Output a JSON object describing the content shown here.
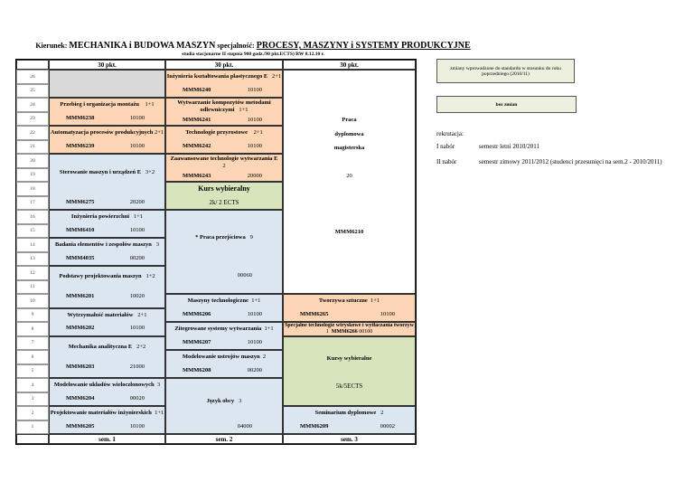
{
  "header": {
    "kierunek_label": "Kierunek:",
    "kierunek": "MECHANIKA i BUDOWA MASZYN",
    "spec_label": "specjalność:",
    "spec": "PROCESY, MASZYNY i SYSTEMY PRODUKCYJNE",
    "subtitle": "studia stacjonarne II stopnia 900 godz./90 pkt.ECTS) RW 8.12.10 r."
  },
  "columns": [
    "30 pkt.",
    "30 pkt.",
    "30 pkt."
  ],
  "footer": [
    "sem. 1",
    "sem. 2",
    "sem. 3"
  ],
  "rows": [
    "26",
    "25",
    "24",
    "23",
    "22",
    "21",
    "20",
    "19",
    "18",
    "17",
    "16",
    "15",
    "14",
    "13",
    "12",
    "11",
    "10",
    "9",
    "8",
    "7",
    "6",
    "5",
    "4",
    "3",
    "2",
    "1"
  ],
  "sem1": [
    {
      "title": "Przebieg i organizacja montażu",
      "hours": "1+1",
      "code": "MMM6238",
      "val": "10100"
    },
    {
      "title": "Automatyzacja procesów produkcyjnych",
      "hours": "2+1",
      "code": "MMM6239",
      "val": "10100"
    },
    {
      "title": "Sterowanie maszyn i urządzeń   E",
      "hours": "3+2",
      "code": "MMM6275",
      "val": "20200"
    },
    {
      "title": "Inżynieria powierzchni",
      "hours": "1+1",
      "code": "MMM6410",
      "val": "10100"
    },
    {
      "title": "Badania elementów i zespołów maszyn",
      "hours": "3",
      "code": "MMM4035",
      "val": "00200"
    },
    {
      "title": "Podstawy projektowania maszyn",
      "hours": "1+2",
      "code": "MMM6201",
      "val": "10020"
    },
    {
      "title": "Wytrzymałość materiałów",
      "hours": "2+1",
      "code": "MMM6202",
      "val": "10100"
    },
    {
      "title": "Mechanika analityczna   E",
      "hours": "2+2",
      "code": "MMM6203",
      "val": "21000"
    },
    {
      "title": "Modelowanie układów wieloczłonowych",
      "hours": "3",
      "code": "MMM6204",
      "val": "00020"
    },
    {
      "title": "Projektowanie materiałów inżynierskich",
      "hours": "1+1",
      "code": "MMM6205",
      "val": "10100"
    }
  ],
  "sem2": [
    {
      "title": "Inżynieria kształtowania plastycznego E",
      "hours": "2+1",
      "code": "MMM6240",
      "val": "10100"
    },
    {
      "title": "Wytwarzanie kompozytów metodami odlewniczymi",
      "hours": "1+1",
      "code": "MMM6241",
      "val": "10100"
    },
    {
      "title": "Technologie przyrostowe",
      "hours": "2+1",
      "code": "MMM6242",
      "val": "10100"
    },
    {
      "title": "Zaawansowane technologie wytwarzania   E",
      "hours": "2",
      "code": "MMM6243",
      "val": "20000"
    },
    {
      "title": "Kurs wybieralny",
      "sub": "2k/ 2 ECTS"
    },
    {
      "title": "* Praca przejściowa",
      "hours": "9",
      "val": "00060"
    },
    {
      "title": "Maszyny technologiczne",
      "hours": "1+1",
      "code": "MMM6206",
      "val": "10100"
    },
    {
      "title": "Zitegrowane systemy wytwarzania",
      "hours": "1+1",
      "code": "MMM6207",
      "val": "10100"
    },
    {
      "title": "Modelowanie ustrojów maszyn",
      "hours": "2",
      "code": "MMM6208",
      "val": "00200"
    },
    {
      "title": "Język obcy",
      "hours": "3",
      "val": "04000"
    }
  ],
  "sem3": {
    "thesis": {
      "l1": "Praca",
      "l2": "dyplomowa",
      "l3": "magisterska",
      "points": "20",
      "code": "MMM6210"
    },
    "tworzywa": {
      "title": "Tworzywa sztuczne",
      "hours": "1+1",
      "code": "MMM6265",
      "val": "10100"
    },
    "wtrysk": {
      "title": "Specjalne technologie wtryskowe i wytłaczania tworzyw",
      "hours": "1",
      "code": "MMM6266",
      "val": "00100"
    },
    "kursy": {
      "title": "Kursy wybieralne",
      "sub": "5k/5ECTS"
    },
    "seminarium": {
      "title": "Seminarium dyplomowe",
      "hours": "2",
      "code": "MMM6209",
      "val": "00002"
    }
  },
  "legend": {
    "note": "zmiany wprowadzone do standardu w stosunku do roku poprzedniego (2010/11)",
    "no_change": "bez zmian"
  },
  "recruitment": {
    "label": "rekrutacja:",
    "r1_label": "I nabór",
    "r1": "semestr letni 2010/2011",
    "r2_label": "II nabór",
    "r2": "semestr zimowy 2011/2012 (studenci przesunięci na sem.2 - 2010/2011)"
  },
  "colors": {
    "orange": "#fcd5b4",
    "blue": "#dce6f1",
    "green": "#d8e4bc",
    "gray": "#d9d9d9"
  }
}
